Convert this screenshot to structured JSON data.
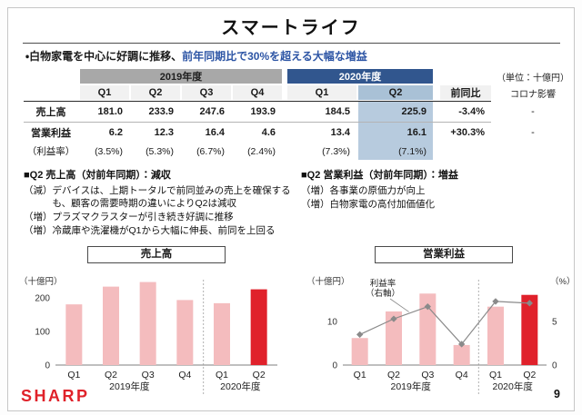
{
  "slide": {
    "title": "スマートライフ",
    "headline": {
      "black": "・白物家電を中心に好調に推移、",
      "blue": "前年同期比で30%を超える大幅な増益"
    },
    "unit_note": "（単位：十億円）",
    "logo": "SHARP",
    "page_number": "9"
  },
  "table": {
    "group_headers": {
      "fy2019": "2019年度",
      "fy2020": "2020年度"
    },
    "col_headers": [
      "Q1",
      "Q2",
      "Q3",
      "Q4",
      "Q1",
      "Q2"
    ],
    "yoy_header": "前同比",
    "corona_header": "コロナ影響",
    "rows": [
      {
        "label": "売上高",
        "bold": true,
        "values": [
          "181.0",
          "233.9",
          "247.6",
          "193.9",
          "184.5",
          "225.9"
        ],
        "yoy": "-3.4%",
        "corona": "-"
      },
      {
        "label": "営業利益",
        "bold": true,
        "values": [
          "6.2",
          "12.3",
          "16.4",
          "4.6",
          "13.4",
          "16.1"
        ],
        "yoy": "+30.3%",
        "corona": "-"
      },
      {
        "label": "（利益率）",
        "bold": false,
        "values": [
          "(3.5%)",
          "(5.3%)",
          "(6.7%)",
          "(2.4%)",
          "(7.3%)",
          "(7.1%)"
        ],
        "yoy": "",
        "corona": ""
      }
    ]
  },
  "notes": {
    "left": {
      "heading": "■Q2 売上高（対前年同期）：減収",
      "items": [
        {
          "tag": "（減）",
          "text": "デバイスは、上期トータルで前同並みの売上を確保するも、顧客の需要時期の違いによりQ2は減収"
        },
        {
          "tag": "（増）",
          "text": "プラズマクラスターが引き続き好調に推移"
        },
        {
          "tag": "（増）",
          "text": "冷蔵庫や洗濯機がQ1から大幅に伸長、前同を上回る"
        }
      ]
    },
    "right": {
      "heading": "■Q2 営業利益（対前年同期）：増益",
      "items": [
        {
          "tag": "（増）",
          "text": "各事業の原価力が向上"
        },
        {
          "tag": "（増）",
          "text": "白物家電の高付加価値化"
        }
      ]
    }
  },
  "chart_data": [
    {
      "type": "bar",
      "name": "sales",
      "title": "売上高",
      "unit_left": "（十億円）",
      "categories": [
        "Q1",
        "Q2",
        "Q3",
        "Q4",
        "Q1",
        "Q2"
      ],
      "values": [
        181.0,
        233.9,
        247.6,
        193.9,
        184.5,
        225.9
      ],
      "group_labels": [
        "2019年度",
        "2020年度"
      ],
      "highlight_index": 5,
      "y_ticks": [
        0,
        100,
        200
      ],
      "ylim": [
        0,
        260
      ],
      "grid": false,
      "bar_color": "#f4bcbe",
      "highlight_color": "#e0212b"
    },
    {
      "type": "bar+line",
      "name": "profit",
      "title": "営業利益",
      "unit_left": "（十億円）",
      "unit_right": "（%）",
      "categories": [
        "Q1",
        "Q2",
        "Q3",
        "Q4",
        "Q1",
        "Q2"
      ],
      "values": [
        6.2,
        12.3,
        16.4,
        4.6,
        13.4,
        16.1
      ],
      "line_series": {
        "name": "利益率（右軸）",
        "values": [
          3.5,
          5.3,
          6.7,
          2.4,
          7.3,
          7.1
        ]
      },
      "line_label_lines": [
        "利益率",
        "（右軸）"
      ],
      "group_labels": [
        "2019年度",
        "2020年度"
      ],
      "highlight_index": 5,
      "y_ticks": [
        0,
        10
      ],
      "ylim": [
        0,
        20
      ],
      "right_ticks": [
        0,
        5
      ],
      "right_ylim": [
        0,
        10
      ],
      "grid": false,
      "bar_color": "#f4bcbe",
      "highlight_color": "#e0212b",
      "line_color": "#8a8a8a"
    }
  ],
  "colors": {
    "fy2019_header_bg": "#a8a8a8",
    "fy2020_header_bg": "#31568e",
    "q_subheader_bg": "#f1f1f1",
    "q2_highlight_bg": "#b7cbde",
    "headline_blue": "#2d55a5",
    "bar_pink": "#f4bcbe",
    "accent_red": "#e0212b",
    "logo_red": "#e0222a"
  }
}
